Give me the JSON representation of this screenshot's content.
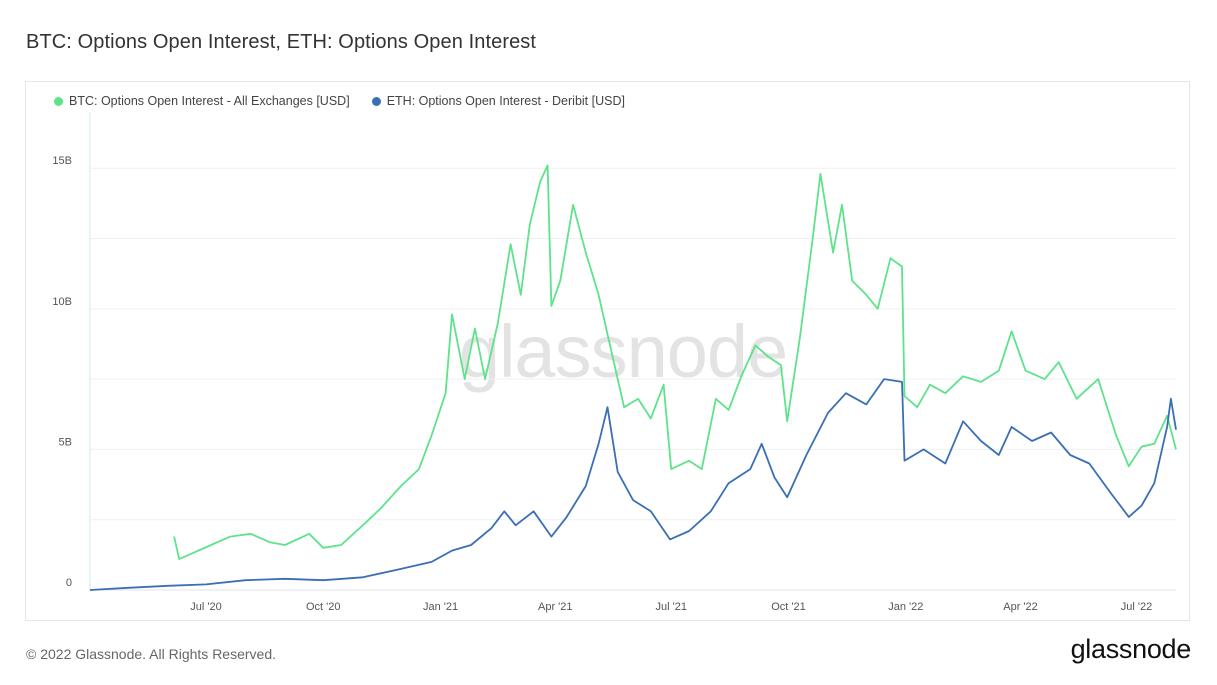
{
  "header": {
    "title": "BTC: Options Open Interest, ETH: Options Open Interest"
  },
  "footer": {
    "copyright": "© 2022 Glassnode. All Rights Reserved.",
    "brand": "glassnode"
  },
  "watermark": "glassnode",
  "chart_data": {
    "type": "line",
    "title": "BTC: Options Open Interest, ETH: Options Open Interest",
    "xlabel": "",
    "ylabel": "",
    "x_range": [
      "2020-04-01",
      "2022-08-01"
    ],
    "ylim": [
      0,
      17000000000
    ],
    "y_ticks": [
      {
        "value": 0,
        "label": "0"
      },
      {
        "value": 5000000000,
        "label": "5B"
      },
      {
        "value": 10000000000,
        "label": "10B"
      },
      {
        "value": 15000000000,
        "label": "15B"
      }
    ],
    "x_ticks": [
      {
        "date": "2020-07-01",
        "label": "Jul '20"
      },
      {
        "date": "2020-10-01",
        "label": "Oct '20"
      },
      {
        "date": "2021-01-01",
        "label": "Jan '21"
      },
      {
        "date": "2021-04-01",
        "label": "Apr '21"
      },
      {
        "date": "2021-07-01",
        "label": "Jul '21"
      },
      {
        "date": "2021-10-01",
        "label": "Oct '21"
      },
      {
        "date": "2022-01-01",
        "label": "Jan '22"
      },
      {
        "date": "2022-04-01",
        "label": "Apr '22"
      },
      {
        "date": "2022-07-01",
        "label": "Jul '22"
      }
    ],
    "grid": true,
    "legend_position": "top-left",
    "series": [
      {
        "name": "BTC: Options Open Interest - All Exchanges [USD]",
        "color": "#5ee38a",
        "points": [
          [
            "2020-06-06",
            1900000000.0
          ],
          [
            "2020-06-10",
            1100000000.0
          ],
          [
            "2020-06-20",
            1300000000.0
          ],
          [
            "2020-07-05",
            1600000000.0
          ],
          [
            "2020-07-20",
            1900000000.0
          ],
          [
            "2020-08-05",
            2000000000.0
          ],
          [
            "2020-08-20",
            1700000000.0
          ],
          [
            "2020-09-01",
            1600000000.0
          ],
          [
            "2020-09-20",
            2000000000.0
          ],
          [
            "2020-10-01",
            1500000000.0
          ],
          [
            "2020-10-15",
            1600000000.0
          ],
          [
            "2020-11-01",
            2300000000.0
          ],
          [
            "2020-11-15",
            2900000000.0
          ],
          [
            "2020-12-01",
            3700000000.0
          ],
          [
            "2020-12-15",
            4300000000.0
          ],
          [
            "2020-12-25",
            5500000000.0
          ],
          [
            "2021-01-05",
            7000000000.0
          ],
          [
            "2021-01-10",
            9800000000.0
          ],
          [
            "2021-01-20",
            7500000000.0
          ],
          [
            "2021-01-28",
            9300000000.0
          ],
          [
            "2021-02-05",
            7500000000.0
          ],
          [
            "2021-02-15",
            9500000000.0
          ],
          [
            "2021-02-25",
            12300000000.0
          ],
          [
            "2021-03-05",
            10500000000.0
          ],
          [
            "2021-03-12",
            13000000000.0
          ],
          [
            "2021-03-20",
            14500000000.0
          ],
          [
            "2021-03-26",
            15100000000.0
          ],
          [
            "2021-03-29",
            10100000000.0
          ],
          [
            "2021-04-05",
            11000000000.0
          ],
          [
            "2021-04-15",
            13700000000.0
          ],
          [
            "2021-04-25",
            12000000000.0
          ],
          [
            "2021-05-05",
            10500000000.0
          ],
          [
            "2021-05-15",
            8500000000.0
          ],
          [
            "2021-05-25",
            6500000000.0
          ],
          [
            "2021-06-05",
            6800000000.0
          ],
          [
            "2021-06-15",
            6100000000.0
          ],
          [
            "2021-06-25",
            7300000000.0
          ],
          [
            "2021-07-01",
            4300000000.0
          ],
          [
            "2021-07-15",
            4600000000.0
          ],
          [
            "2021-07-25",
            4300000000.0
          ],
          [
            "2021-08-05",
            6800000000.0
          ],
          [
            "2021-08-15",
            6400000000.0
          ],
          [
            "2021-08-25",
            7600000000.0
          ],
          [
            "2021-09-05",
            8700000000.0
          ],
          [
            "2021-09-15",
            8300000000.0
          ],
          [
            "2021-09-25",
            8000000000.0
          ],
          [
            "2021-09-30",
            6000000000.0
          ],
          [
            "2021-10-10",
            9000000000.0
          ],
          [
            "2021-10-20",
            12500000000.0
          ],
          [
            "2021-10-26",
            14800000000.0
          ],
          [
            "2021-11-05",
            12000000000.0
          ],
          [
            "2021-11-12",
            13700000000.0
          ],
          [
            "2021-11-20",
            11000000000.0
          ],
          [
            "2021-12-01",
            10500000000.0
          ],
          [
            "2021-12-10",
            10000000000.0
          ],
          [
            "2021-12-20",
            11800000000.0
          ],
          [
            "2021-12-29",
            11500000000.0
          ],
          [
            "2021-12-31",
            6900000000.0
          ],
          [
            "2022-01-10",
            6500000000.0
          ],
          [
            "2022-01-20",
            7300000000.0
          ],
          [
            "2022-02-01",
            7000000000.0
          ],
          [
            "2022-02-15",
            7600000000.0
          ],
          [
            "2022-03-01",
            7400000000.0
          ],
          [
            "2022-03-15",
            7800000000.0
          ],
          [
            "2022-03-25",
            9200000000.0
          ],
          [
            "2022-04-05",
            7800000000.0
          ],
          [
            "2022-04-20",
            7500000000.0
          ],
          [
            "2022-05-01",
            8100000000.0
          ],
          [
            "2022-05-15",
            6800000000.0
          ],
          [
            "2022-06-01",
            7500000000.0
          ],
          [
            "2022-06-15",
            5500000000.0
          ],
          [
            "2022-06-25",
            4400000000.0
          ],
          [
            "2022-07-05",
            5100000000.0
          ],
          [
            "2022-07-15",
            5200000000.0
          ],
          [
            "2022-07-25",
            6200000000.0
          ],
          [
            "2022-08-01",
            5000000000.0
          ]
        ]
      },
      {
        "name": "ETH: Options Open Interest - Deribit [USD]",
        "color": "#3b6fb3",
        "points": [
          [
            "2020-04-01",
            0.0
          ],
          [
            "2020-05-01",
            80000000.0
          ],
          [
            "2020-06-01",
            150000000.0
          ],
          [
            "2020-07-01",
            200000000.0
          ],
          [
            "2020-08-01",
            350000000.0
          ],
          [
            "2020-09-01",
            400000000.0
          ],
          [
            "2020-10-01",
            350000000.0
          ],
          [
            "2020-11-01",
            450000000.0
          ],
          [
            "2020-12-01",
            750000000.0
          ],
          [
            "2020-12-25",
            1000000000.0
          ],
          [
            "2021-01-10",
            1400000000.0
          ],
          [
            "2021-01-25",
            1600000000.0
          ],
          [
            "2021-02-10",
            2200000000.0
          ],
          [
            "2021-02-20",
            2800000000.0
          ],
          [
            "2021-03-01",
            2300000000.0
          ],
          [
            "2021-03-15",
            2800000000.0
          ],
          [
            "2021-03-29",
            1900000000.0
          ],
          [
            "2021-04-10",
            2600000000.0
          ],
          [
            "2021-04-25",
            3700000000.0
          ],
          [
            "2021-05-05",
            5200000000.0
          ],
          [
            "2021-05-12",
            6500000000.0
          ],
          [
            "2021-05-20",
            4200000000.0
          ],
          [
            "2021-06-01",
            3200000000.0
          ],
          [
            "2021-06-15",
            2800000000.0
          ],
          [
            "2021-06-30",
            1800000000.0
          ],
          [
            "2021-07-15",
            2100000000.0
          ],
          [
            "2021-08-01",
            2800000000.0
          ],
          [
            "2021-08-15",
            3800000000.0
          ],
          [
            "2021-09-01",
            4300000000.0
          ],
          [
            "2021-09-10",
            5200000000.0
          ],
          [
            "2021-09-20",
            4000000000.0
          ],
          [
            "2021-09-30",
            3300000000.0
          ],
          [
            "2021-10-15",
            4800000000.0
          ],
          [
            "2021-11-01",
            6300000000.0
          ],
          [
            "2021-11-15",
            7000000000.0
          ],
          [
            "2021-12-01",
            6600000000.0
          ],
          [
            "2021-12-15",
            7500000000.0
          ],
          [
            "2021-12-29",
            7400000000.0
          ],
          [
            "2021-12-31",
            4600000000.0
          ],
          [
            "2022-01-15",
            5000000000.0
          ],
          [
            "2022-02-01",
            4500000000.0
          ],
          [
            "2022-02-15",
            6000000000.0
          ],
          [
            "2022-03-01",
            5300000000.0
          ],
          [
            "2022-03-15",
            4800000000.0
          ],
          [
            "2022-03-25",
            5800000000.0
          ],
          [
            "2022-04-10",
            5300000000.0
          ],
          [
            "2022-04-25",
            5600000000.0
          ],
          [
            "2022-05-10",
            4800000000.0
          ],
          [
            "2022-05-25",
            4500000000.0
          ],
          [
            "2022-06-10",
            3500000000.0
          ],
          [
            "2022-06-25",
            2600000000.0
          ],
          [
            "2022-07-05",
            3000000000.0
          ],
          [
            "2022-07-15",
            3800000000.0
          ],
          [
            "2022-07-25",
            5800000000.0
          ],
          [
            "2022-07-28",
            6800000000.0
          ],
          [
            "2022-08-01",
            5700000000.0
          ]
        ]
      }
    ]
  }
}
